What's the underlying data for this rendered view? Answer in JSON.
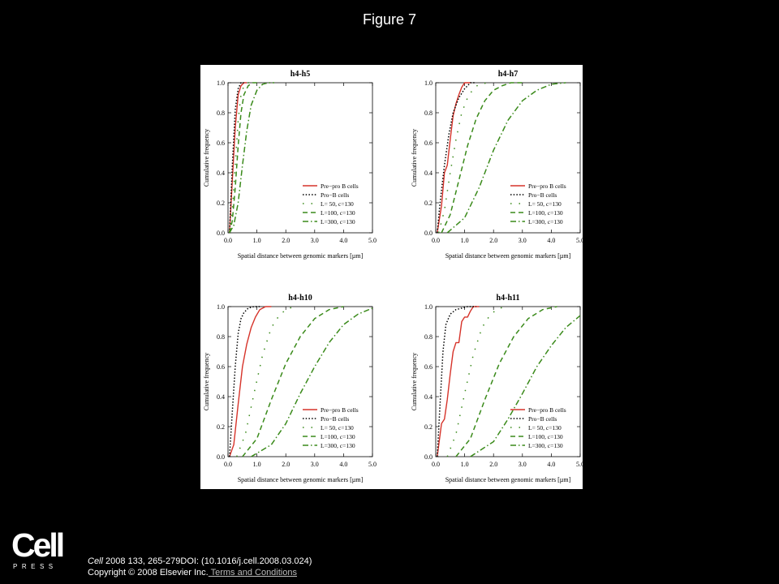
{
  "page": {
    "title": "Figure 7",
    "logo": {
      "word": "Cell",
      "sub": "PRESS"
    },
    "citation": {
      "journal": "Cell",
      "details": " 2008 133, 265-279DOI: (10.1016/j.cell.2008.03.024)",
      "copyright": "Copyright © 2008 Elsevier Inc.",
      "terms_link": " Terms and Conditions"
    }
  },
  "chart_data": [
    {
      "type": "line",
      "title": "h4-h5",
      "xlabel": "Spatial distance between genomic markers [µm]",
      "ylabel": "Cumulative frequency",
      "xlim": [
        0,
        5
      ],
      "ylim": [
        0,
        1
      ],
      "xticks": [
        "0.0",
        "1.0",
        "2.0",
        "3.0",
        "4.0",
        "5.0"
      ],
      "yticks": [
        "0.0",
        "0.2",
        "0.4",
        "0.6",
        "0.8",
        "1.0"
      ],
      "legend_position": "bottom-right",
      "series": [
        {
          "name": "Pre−pro B cells",
          "color": "#d6332a",
          "style": "solid",
          "x": [
            0.05,
            0.15,
            0.25,
            0.35,
            0.45,
            0.55,
            0.65
          ],
          "y": [
            0.0,
            0.35,
            0.7,
            0.92,
            0.98,
            1.0,
            1.0
          ]
        },
        {
          "name": "Pro−B cells",
          "color": "#000000",
          "style": "dotted",
          "x": [
            0.05,
            0.15,
            0.25,
            0.35,
            0.45,
            0.55
          ],
          "y": [
            0.0,
            0.45,
            0.82,
            0.96,
            1.0,
            1.0
          ]
        },
        {
          "name": "L= 50, c=130",
          "color": "#3a8a1a",
          "style": "dot-sparse",
          "x": [
            0.05,
            0.15,
            0.25,
            0.35,
            0.45,
            0.55,
            0.65,
            0.8
          ],
          "y": [
            0.0,
            0.15,
            0.45,
            0.75,
            0.92,
            0.98,
            1.0,
            1.0
          ]
        },
        {
          "name": "L=100, c=130",
          "color": "#3a8a1a",
          "style": "dashed",
          "x": [
            0.05,
            0.15,
            0.25,
            0.35,
            0.45,
            0.55,
            0.7,
            0.85,
            1.0
          ],
          "y": [
            0.0,
            0.08,
            0.3,
            0.58,
            0.8,
            0.92,
            0.98,
            1.0,
            1.0
          ]
        },
        {
          "name": "L=300, c=130",
          "color": "#3a8a1a",
          "style": "dashdot",
          "x": [
            0.05,
            0.2,
            0.35,
            0.5,
            0.65,
            0.8,
            1.0,
            1.2,
            1.4,
            1.6
          ],
          "y": [
            0.0,
            0.05,
            0.2,
            0.45,
            0.68,
            0.85,
            0.95,
            0.99,
            1.0,
            1.0
          ]
        }
      ]
    },
    {
      "type": "line",
      "title": "h4-h7",
      "xlabel": "Spatial distance between genomic markers [µm]",
      "ylabel": "Cumulative frequency",
      "xlim": [
        0,
        5
      ],
      "ylim": [
        0,
        1
      ],
      "xticks": [
        "0.0",
        "1.0",
        "2.0",
        "3.0",
        "4.0",
        "5.0"
      ],
      "yticks": [
        "0.0",
        "0.2",
        "0.4",
        "0.6",
        "0.8",
        "1.0"
      ],
      "legend_position": "bottom-right",
      "series": [
        {
          "name": "Pre−pro B cells",
          "color": "#d6332a",
          "style": "solid",
          "x": [
            0.05,
            0.2,
            0.3,
            0.4,
            0.5,
            0.6,
            0.7,
            0.8,
            0.9,
            1.0,
            1.2
          ],
          "y": [
            0.0,
            0.18,
            0.4,
            0.45,
            0.62,
            0.78,
            0.86,
            0.92,
            0.97,
            1.0,
            1.0
          ]
        },
        {
          "name": "Pro−B cells",
          "color": "#000000",
          "style": "dotted",
          "x": [
            0.05,
            0.15,
            0.3,
            0.45,
            0.6,
            0.8,
            1.0,
            1.2,
            1.4
          ],
          "y": [
            0.0,
            0.2,
            0.45,
            0.65,
            0.8,
            0.9,
            0.96,
            1.0,
            1.0
          ]
        },
        {
          "name": "L= 50, c=130",
          "color": "#3a8a1a",
          "style": "dot-sparse",
          "x": [
            0.1,
            0.3,
            0.5,
            0.7,
            0.9,
            1.1,
            1.3,
            1.5,
            1.8
          ],
          "y": [
            0.0,
            0.15,
            0.4,
            0.62,
            0.8,
            0.9,
            0.96,
            0.99,
            1.0
          ]
        },
        {
          "name": "L=100, c=130",
          "color": "#3a8a1a",
          "style": "dashed",
          "x": [
            0.2,
            0.5,
            0.8,
            1.1,
            1.4,
            1.7,
            2.0,
            2.3,
            2.6,
            3.0
          ],
          "y": [
            0.0,
            0.12,
            0.35,
            0.58,
            0.76,
            0.88,
            0.95,
            0.98,
            1.0,
            1.0
          ]
        },
        {
          "name": "L=300, c=130",
          "color": "#3a8a1a",
          "style": "dashdot",
          "x": [
            0.4,
            1.0,
            1.5,
            2.0,
            2.5,
            3.0,
            3.5,
            4.0,
            4.5
          ],
          "y": [
            0.0,
            0.1,
            0.3,
            0.55,
            0.75,
            0.88,
            0.95,
            0.99,
            1.0
          ]
        }
      ]
    },
    {
      "type": "line",
      "title": "h4-h10",
      "xlabel": "Spatial distance between genomic markers [µm]",
      "ylabel": "Cumulative frequency",
      "xlim": [
        0,
        5
      ],
      "ylim": [
        0,
        1
      ],
      "xticks": [
        "0.0",
        "1.0",
        "2.0",
        "3.0",
        "4.0",
        "5.0"
      ],
      "yticks": [
        "0.0",
        "0.2",
        "0.4",
        "0.6",
        "0.8",
        "1.0"
      ],
      "legend_position": "bottom-right",
      "series": [
        {
          "name": "Pre−pro B cells",
          "color": "#d6332a",
          "style": "solid",
          "x": [
            0.05,
            0.2,
            0.35,
            0.5,
            0.65,
            0.8,
            0.95,
            1.1,
            1.3,
            1.5
          ],
          "y": [
            0.0,
            0.08,
            0.35,
            0.6,
            0.75,
            0.86,
            0.93,
            0.98,
            1.0,
            1.0
          ]
        },
        {
          "name": "Pro−B cells",
          "color": "#000000",
          "style": "dotted",
          "x": [
            0.05,
            0.15,
            0.25,
            0.35,
            0.45,
            0.55,
            0.7,
            0.9,
            1.1
          ],
          "y": [
            0.0,
            0.3,
            0.6,
            0.82,
            0.92,
            0.96,
            0.99,
            1.0,
            1.0
          ]
        },
        {
          "name": "L= 50, c=130",
          "color": "#3a8a1a",
          "style": "dot-sparse",
          "x": [
            0.3,
            0.6,
            0.9,
            1.2,
            1.5,
            1.8,
            2.1,
            2.4
          ],
          "y": [
            0.0,
            0.15,
            0.42,
            0.68,
            0.86,
            0.95,
            0.99,
            1.0
          ]
        },
        {
          "name": "L=100, c=130",
          "color": "#3a8a1a",
          "style": "dashed",
          "x": [
            0.5,
            1.0,
            1.5,
            2.0,
            2.5,
            3.0,
            3.5,
            4.0
          ],
          "y": [
            0.0,
            0.12,
            0.38,
            0.62,
            0.8,
            0.92,
            0.98,
            1.0
          ]
        },
        {
          "name": "L=300, c=130",
          "color": "#3a8a1a",
          "style": "dashdot",
          "x": [
            0.8,
            1.5,
            2.0,
            2.5,
            3.0,
            3.5,
            4.0,
            4.5,
            5.0
          ],
          "y": [
            0.0,
            0.08,
            0.22,
            0.42,
            0.6,
            0.76,
            0.88,
            0.95,
            0.99
          ]
        }
      ]
    },
    {
      "type": "line",
      "title": "h4-h11",
      "xlabel": "Spatial distance between genomic markers [µm]",
      "ylabel": "Cumulative frequency",
      "xlim": [
        0,
        5
      ],
      "ylim": [
        0,
        1
      ],
      "xticks": [
        "0.0",
        "1.0",
        "2.0",
        "3.0",
        "4.0",
        "5.0"
      ],
      "yticks": [
        "0.0",
        "0.2",
        "0.4",
        "0.6",
        "0.8",
        "1.0"
      ],
      "legend_position": "bottom-right",
      "series": [
        {
          "name": "Pre−pro B cells",
          "color": "#d6332a",
          "style": "solid",
          "x": [
            0.05,
            0.2,
            0.3,
            0.4,
            0.5,
            0.6,
            0.7,
            0.8,
            0.9,
            1.0,
            1.1,
            1.2,
            1.3,
            1.5
          ],
          "y": [
            0.0,
            0.22,
            0.25,
            0.38,
            0.55,
            0.7,
            0.76,
            0.76,
            0.9,
            0.93,
            0.93,
            0.97,
            1.0,
            1.0
          ]
        },
        {
          "name": "Pro−B cells",
          "color": "#000000",
          "style": "dotted",
          "x": [
            0.05,
            0.15,
            0.25,
            0.35,
            0.5,
            0.7,
            0.9,
            1.1,
            1.4
          ],
          "y": [
            0.0,
            0.35,
            0.7,
            0.88,
            0.95,
            0.98,
            0.99,
            1.0,
            1.0
          ]
        },
        {
          "name": "L= 50, c=130",
          "color": "#3a8a1a",
          "style": "dot-sparse",
          "x": [
            0.4,
            0.7,
            1.0,
            1.3,
            1.6,
            1.9,
            2.2,
            2.5
          ],
          "y": [
            0.0,
            0.15,
            0.42,
            0.68,
            0.86,
            0.95,
            0.99,
            1.0
          ]
        },
        {
          "name": "L=100, c=130",
          "color": "#3a8a1a",
          "style": "dashed",
          "x": [
            0.7,
            1.2,
            1.7,
            2.2,
            2.7,
            3.2,
            3.7,
            4.2
          ],
          "y": [
            0.0,
            0.12,
            0.38,
            0.62,
            0.8,
            0.92,
            0.98,
            1.0
          ]
        },
        {
          "name": "L=300, c=130",
          "color": "#3a8a1a",
          "style": "dashdot",
          "x": [
            1.2,
            2.0,
            2.5,
            3.0,
            3.5,
            4.0,
            4.5,
            5.0
          ],
          "y": [
            0.0,
            0.1,
            0.25,
            0.42,
            0.6,
            0.74,
            0.86,
            0.94
          ]
        }
      ]
    }
  ]
}
